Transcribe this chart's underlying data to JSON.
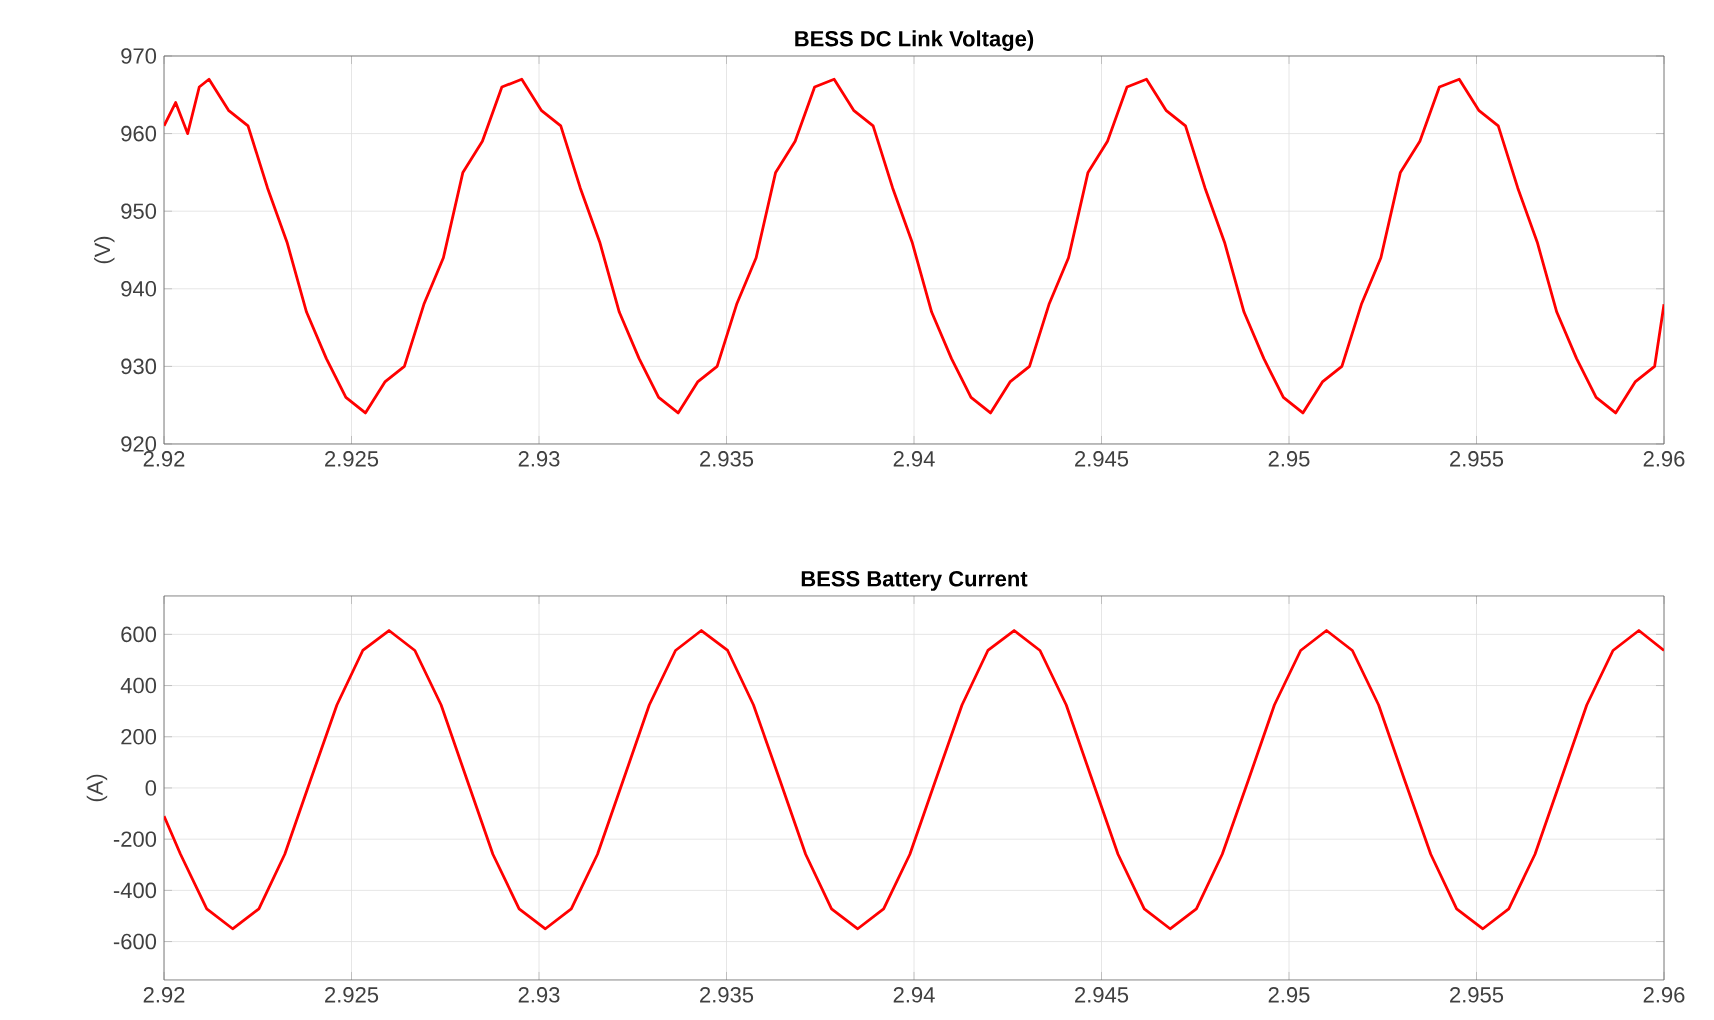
{
  "chart_data": [
    {
      "type": "line",
      "title": "BESS DC Link Voltage)",
      "ylabel": "(V)",
      "xlim": [
        2.92,
        2.96
      ],
      "ylim": [
        920,
        970
      ],
      "xticks": [
        2.92,
        2.925,
        2.93,
        2.935,
        2.94,
        2.945,
        2.95,
        2.955,
        2.96
      ],
      "yticks": [
        920,
        930,
        940,
        950,
        960,
        970
      ],
      "grid": true,
      "series": [
        {
          "color": "#ff0000",
          "x": [
            2.92,
            2.92031,
            2.92063,
            2.92094,
            2.9212,
            2.92172,
            2.92224,
            2.92276,
            2.92328,
            2.9238,
            2.92433,
            2.92485,
            2.92537,
            2.92589,
            2.92641,
            2.92693,
            2.92745,
            2.92797,
            2.92849,
            2.92901,
            2.92954,
            2.93006,
            2.93058,
            2.9311,
            2.93162,
            2.93214,
            2.93267,
            2.93319,
            2.93371,
            2.93423,
            2.93475,
            2.93527,
            2.93579,
            2.93631,
            2.93683,
            2.93735,
            2.93787,
            2.93839,
            2.93891,
            2.93943,
            2.93995,
            2.94047,
            2.941,
            2.94152,
            2.94204,
            2.94256,
            2.94308,
            2.9436,
            2.94412,
            2.94464,
            2.94516,
            2.94568,
            2.9462,
            2.94672,
            2.94724,
            2.94776,
            2.94828,
            2.9488,
            2.94933,
            2.94985,
            2.95037,
            2.95089,
            2.95141,
            2.95193,
            2.95245,
            2.95297,
            2.95349,
            2.95401,
            2.95454,
            2.95506,
            2.95558,
            2.9561,
            2.95662,
            2.95714,
            2.95767,
            2.95819,
            2.95871,
            2.95923,
            2.95975,
            2.96
          ],
          "values": [
            961,
            964,
            960,
            966,
            967,
            963,
            961,
            953,
            946,
            937,
            931,
            926,
            924,
            928,
            930,
            938,
            944,
            955,
            959,
            966,
            967,
            963,
            961,
            953,
            946,
            937,
            931,
            926,
            924,
            928,
            930,
            938,
            944,
            955,
            959,
            966,
            967,
            963,
            961,
            953,
            946,
            937,
            931,
            926,
            924,
            928,
            930,
            938,
            944,
            955,
            959,
            966,
            967,
            963,
            961,
            953,
            946,
            937,
            931,
            926,
            924,
            928,
            930,
            938,
            944,
            955,
            959,
            966,
            967,
            963,
            961,
            953,
            946,
            937,
            931,
            926,
            924,
            928,
            930,
            938
          ]
        }
      ]
    },
    {
      "type": "line",
      "title": "BESS Battery Current",
      "ylabel": "(A)",
      "xlim": [
        2.92,
        2.96
      ],
      "ylim": [
        -750,
        750
      ],
      "xticks": [
        2.92,
        2.925,
        2.93,
        2.935,
        2.94,
        2.945,
        2.95,
        2.955,
        2.96
      ],
      "yticks": [
        -600,
        -400,
        -200,
        0,
        200,
        400,
        600
      ],
      "grid": true,
      "series": [
        {
          "color": "#ff0000",
          "x": [
            2.92,
            2.92044,
            2.92114,
            2.92183,
            2.92253,
            2.92322,
            2.92391,
            2.92461,
            2.9253,
            2.926,
            2.92669,
            2.92739,
            2.92808,
            2.92877,
            2.92947,
            2.93017,
            2.93086,
            2.93156,
            2.93225,
            2.93294,
            2.93364,
            2.93433,
            2.93503,
            2.93572,
            2.93642,
            2.93711,
            2.9378,
            2.9385,
            2.93919,
            2.93989,
            2.94058,
            2.94128,
            2.94197,
            2.94267,
            2.94336,
            2.94406,
            2.94475,
            2.94544,
            2.94614,
            2.94683,
            2.94753,
            2.94822,
            2.94892,
            2.94961,
            2.95031,
            2.951,
            2.95169,
            2.95239,
            2.95308,
            2.95378,
            2.95447,
            2.95517,
            2.95586,
            2.95656,
            2.95725,
            2.95794,
            2.95864,
            2.95933,
            2.96
          ],
          "values": [
            -110,
            -259,
            -472,
            -550,
            -472,
            -259,
            32,
            324,
            537,
            615,
            537,
            324,
            32,
            -259,
            -472,
            -550,
            -472,
            -259,
            32,
            324,
            537,
            615,
            537,
            324,
            32,
            -259,
            -472,
            -550,
            -472,
            -259,
            32,
            324,
            537,
            615,
            537,
            324,
            32,
            -259,
            -472,
            -550,
            -472,
            -259,
            32,
            324,
            537,
            615,
            537,
            324,
            32,
            -259,
            -472,
            -550,
            -472,
            -259,
            32,
            324,
            537,
            615,
            537
          ]
        }
      ]
    }
  ]
}
